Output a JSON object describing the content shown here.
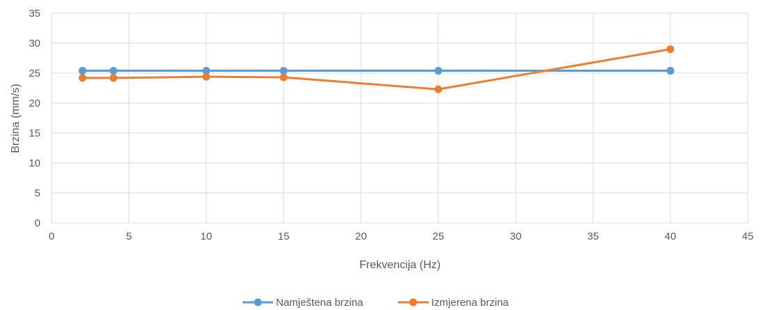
{
  "chart_data": {
    "type": "line",
    "title": "",
    "xlabel": "Frekvencija (Hz)",
    "ylabel": "Brzina (mm/s)",
    "xlim": [
      0,
      45
    ],
    "ylim": [
      0,
      35
    ],
    "xticks": [
      0,
      5,
      10,
      15,
      20,
      25,
      30,
      35,
      40,
      45
    ],
    "yticks": [
      0,
      5,
      10,
      15,
      20,
      25,
      30,
      35
    ],
    "grid": true,
    "legend_position": "bottom",
    "series": [
      {
        "name": "Namještena brzina",
        "color": "#5B9BD5",
        "x": [
          2,
          4,
          10,
          15,
          25,
          40
        ],
        "y": [
          25.4,
          25.4,
          25.4,
          25.4,
          25.4,
          25.4
        ]
      },
      {
        "name": "Izmjerena brzina",
        "color": "#ED7D31",
        "x": [
          2,
          4,
          10,
          15,
          25,
          40
        ],
        "y": [
          24.2,
          24.2,
          24.4,
          24.3,
          22.3,
          29.0
        ]
      }
    ]
  }
}
